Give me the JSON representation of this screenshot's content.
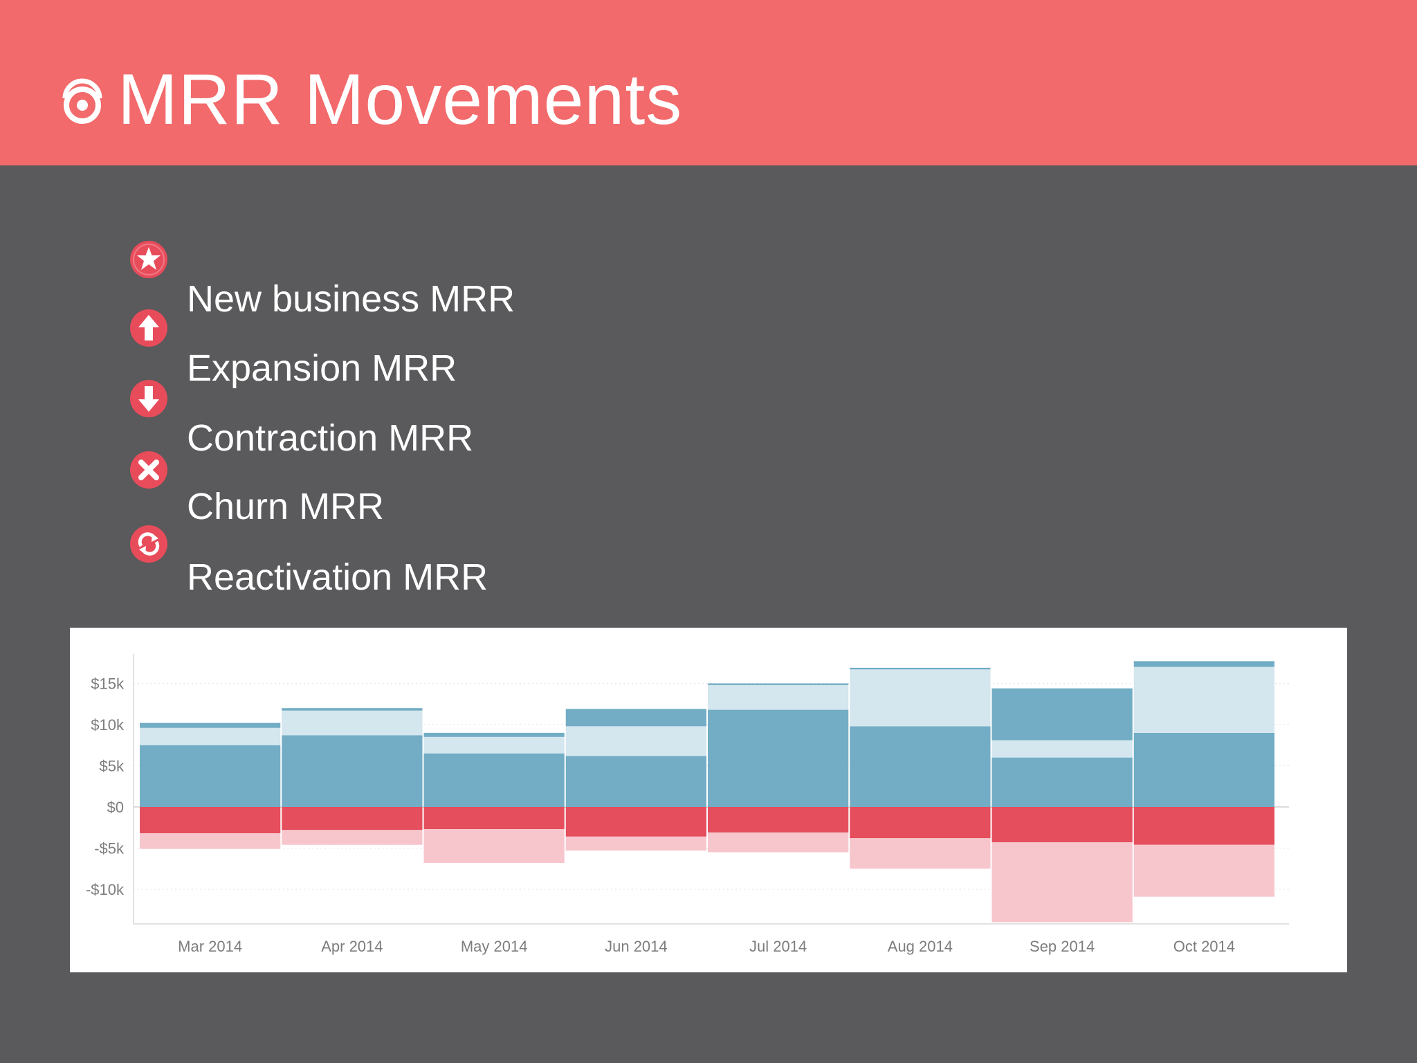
{
  "slide": {
    "title": "MRR Movements",
    "logo_icon": "target-logo-icon"
  },
  "legend": [
    {
      "label": "New business MRR",
      "icon": "star-icon"
    },
    {
      "label": "Expansion MRR",
      "icon": "arrow-up-icon"
    },
    {
      "label": "Contraction MRR",
      "icon": "arrow-down-icon"
    },
    {
      "label": "Churn MRR",
      "icon": "close-x-icon"
    },
    {
      "label": "Reactivation MRR",
      "icon": "refresh-icon"
    }
  ],
  "colors": {
    "header": "#f26a6b",
    "background": "#5a595b",
    "new_business": "#72adc5",
    "expansion": "#d4e6ee",
    "reactivation": "#72adc5",
    "contraction": "#f7c6cd",
    "churn": "#e54e5d",
    "icon_badge": "#e84c5b"
  },
  "chart_data": {
    "type": "bar",
    "stacked": true,
    "categories": [
      "Mar 2014",
      "Apr 2014",
      "May 2014",
      "Jun 2014",
      "Jul 2014",
      "Aug 2014",
      "Sep 2014",
      "Oct 2014"
    ],
    "y_ticks": [
      {
        "value": 15000,
        "label": "$15k"
      },
      {
        "value": 10000,
        "label": "$10k"
      },
      {
        "value": 5000,
        "label": "$5k"
      },
      {
        "value": 0,
        "label": "$0"
      },
      {
        "value": -5000,
        "label": "-$5k"
      },
      {
        "value": -10000,
        "label": "-$10k"
      }
    ],
    "ylim": [
      -14000,
      17500
    ],
    "grid": true,
    "series": [
      {
        "key": "new_business",
        "values": [
          7500,
          8700,
          6500,
          6200,
          11800,
          9800,
          6000,
          9000
        ]
      },
      {
        "key": "expansion",
        "values": [
          2100,
          3000,
          2000,
          3600,
          3000,
          6900,
          2100,
          8000
        ]
      },
      {
        "key": "reactivation",
        "values": [
          600,
          300,
          500,
          2100,
          200,
          200,
          6300,
          700
        ]
      },
      {
        "key": "churn",
        "values": [
          -3200,
          -2800,
          -2700,
          -3600,
          -3100,
          -3800,
          -4300,
          -4600
        ]
      },
      {
        "key": "contraction",
        "values": [
          -1900,
          -1800,
          -4100,
          -1700,
          -2400,
          -3700,
          -9700,
          -6300
        ]
      }
    ]
  }
}
